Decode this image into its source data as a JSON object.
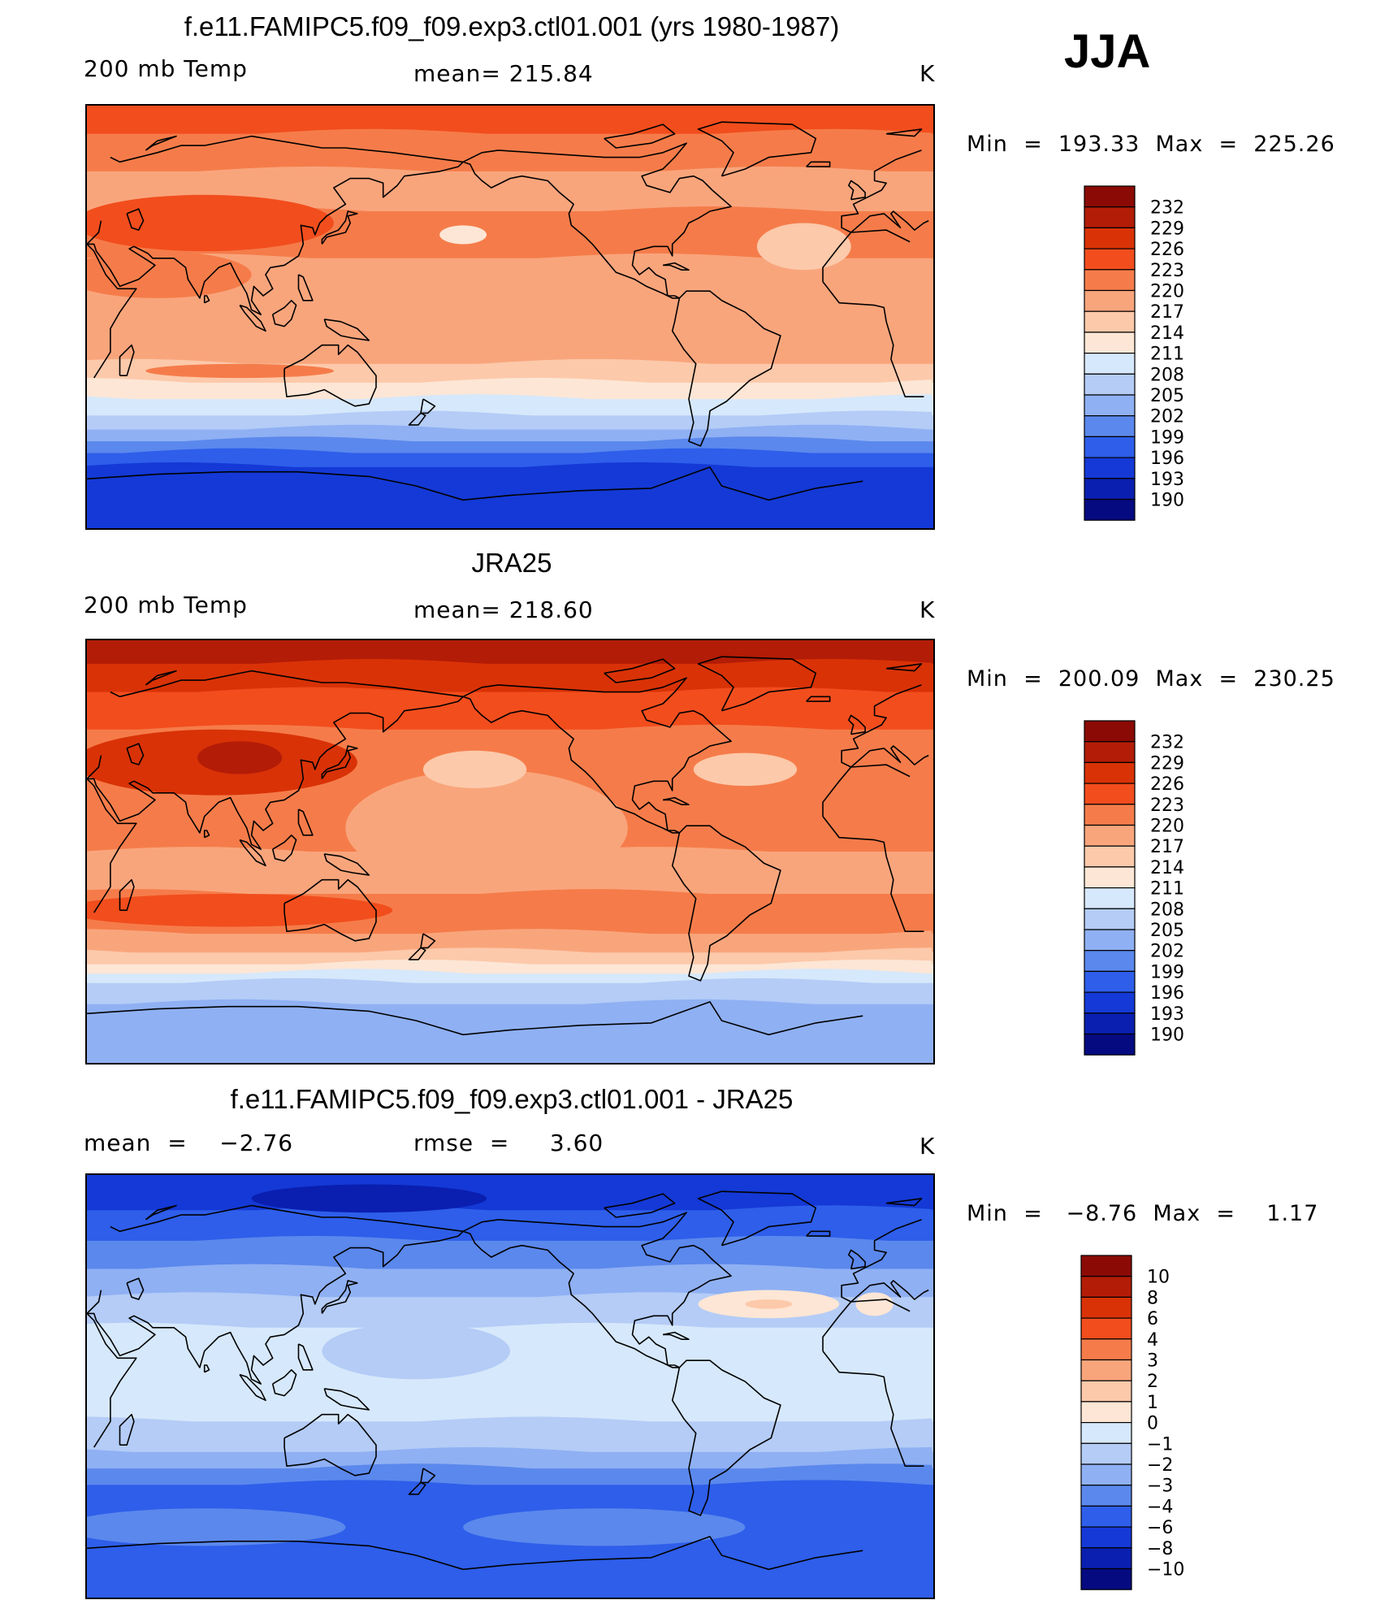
{
  "season": "JJA",
  "panels": [
    {
      "title": "f.e11.FAMIPC5.f09_f09.exp3.ctl01.001 (yrs 1980-1987)",
      "left_label": "200 mb Temp",
      "center_label": "mean= 215.84",
      "units": "K",
      "minmax": "Min  =  193.33  Max  =  225.26",
      "palette": "abs",
      "bands": [
        {
          "lat": [
            90,
            78
          ],
          "level": 223
        },
        {
          "lat": [
            78,
            62
          ],
          "level": 220
        },
        {
          "lat": [
            62,
            45
          ],
          "level": 217
        },
        {
          "lat": [
            45,
            25
          ],
          "level": 220
        },
        {
          "lat": [
            25,
            -20
          ],
          "level": 217
        },
        {
          "lat": [
            -20,
            -28
          ],
          "level": 214
        },
        {
          "lat": [
            -28,
            -35
          ],
          "level": 211
        },
        {
          "lat": [
            -35,
            -42
          ],
          "level": 208
        },
        {
          "lat": [
            -42,
            -48
          ],
          "level": 205
        },
        {
          "lat": [
            -48,
            -53
          ],
          "level": 202
        },
        {
          "lat": [
            -53,
            -58
          ],
          "level": 199
        },
        {
          "lat": [
            -58,
            -64
          ],
          "level": 196
        },
        {
          "lat": [
            -64,
            -90
          ],
          "level": 193
        }
      ],
      "blobs": [
        {
          "lon": 80,
          "lat": 40,
          "rlon": 55,
          "rlat": 12,
          "level": 223
        },
        {
          "lon": 60,
          "lat": 18,
          "rlon": 40,
          "rlat": 10,
          "level": 220
        },
        {
          "lon": 190,
          "lat": 35,
          "rlon": 10,
          "rlat": 4,
          "level": 211
        },
        {
          "lon": 95,
          "lat": -23,
          "rlon": 40,
          "rlat": 3,
          "level": 220
        },
        {
          "lon": 335,
          "lat": 30,
          "rlon": 20,
          "rlat": 10,
          "level": 214
        }
      ]
    },
    {
      "title": "JRA25",
      "left_label": "200 mb Temp",
      "center_label": "mean= 218.60",
      "units": "K",
      "minmax": "Min  =  200.09  Max  =  230.25",
      "palette": "abs",
      "bands": [
        {
          "lat": [
            90,
            80
          ],
          "level": 229
        },
        {
          "lat": [
            80,
            68
          ],
          "level": 226
        },
        {
          "lat": [
            68,
            52
          ],
          "level": 223
        },
        {
          "lat": [
            52,
            0
          ],
          "level": 220
        },
        {
          "lat": [
            0,
            -18
          ],
          "level": 217
        },
        {
          "lat": [
            -18,
            -35
          ],
          "level": 220
        },
        {
          "lat": [
            -35,
            -43
          ],
          "level": 217
        },
        {
          "lat": [
            -43,
            -48
          ],
          "level": 214
        },
        {
          "lat": [
            -48,
            -52
          ],
          "level": 211
        },
        {
          "lat": [
            -52,
            -56
          ],
          "level": 208
        },
        {
          "lat": [
            -56,
            -65
          ],
          "level": 205
        },
        {
          "lat": [
            -65,
            -90
          ],
          "level": 202
        }
      ],
      "blobs": [
        {
          "lon": 85,
          "lat": 38,
          "rlon": 60,
          "rlat": 14,
          "level": 226
        },
        {
          "lon": 95,
          "lat": 40,
          "rlon": 18,
          "rlat": 7,
          "level": 229
        },
        {
          "lon": 200,
          "lat": 10,
          "rlon": 60,
          "rlat": 25,
          "level": 217
        },
        {
          "lon": 195,
          "lat": 35,
          "rlon": 22,
          "rlat": 8,
          "level": 214
        },
        {
          "lon": 310,
          "lat": 35,
          "rlon": 22,
          "rlat": 7,
          "level": 214
        },
        {
          "lon": 90,
          "lat": -25,
          "rlon": 70,
          "rlat": 7,
          "level": 223
        }
      ]
    },
    {
      "title": "f.e11.FAMIPC5.f09_f09.exp3.ctl01.001 - JRA25",
      "left_label": "mean  =    −2.76",
      "center_label": "rmse  =     3.60",
      "units": "K",
      "minmax": "Min  =   −8.76  Max  =    1.17",
      "palette": "diff",
      "bands": [
        {
          "lat": [
            90,
            75
          ],
          "level": -8
        },
        {
          "lat": [
            75,
            62
          ],
          "level": -6
        },
        {
          "lat": [
            62,
            50
          ],
          "level": -4
        },
        {
          "lat": [
            50,
            38
          ],
          "level": -3
        },
        {
          "lat": [
            38,
            25
          ],
          "level": -2
        },
        {
          "lat": [
            25,
            -15
          ],
          "level": -1
        },
        {
          "lat": [
            -15,
            -28
          ],
          "level": -2
        },
        {
          "lat": [
            -28,
            -35
          ],
          "level": -3
        },
        {
          "lat": [
            -35,
            -42
          ],
          "level": -4
        },
        {
          "lat": [
            -42,
            -90
          ],
          "level": -6
        }
      ],
      "blobs": [
        {
          "lon": 170,
          "lat": 15,
          "rlon": 40,
          "rlat": 12,
          "level": -2
        },
        {
          "lon": 320,
          "lat": 35,
          "rlon": 30,
          "rlat": 6,
          "level": 0
        },
        {
          "lon": 320,
          "lat": 35,
          "rlon": 10,
          "rlat": 2,
          "level": 1
        },
        {
          "lon": 5,
          "lat": 35,
          "rlon": 8,
          "rlat": 5,
          "level": 0
        },
        {
          "lon": 80,
          "lat": -60,
          "rlon": 60,
          "rlat": 8,
          "level": -4
        },
        {
          "lon": 250,
          "lat": -60,
          "rlon": 60,
          "rlat": 8,
          "level": -4
        },
        {
          "lon": 150,
          "lat": 80,
          "rlon": 50,
          "rlat": 6,
          "level": -10
        }
      ]
    }
  ],
  "colorbars": [
    {
      "labels": [
        "232",
        "229",
        "226",
        "223",
        "220",
        "217",
        "214",
        "211",
        "208",
        "205",
        "202",
        "199",
        "196",
        "193",
        "190"
      ],
      "colors": [
        "#8b0a05",
        "#b31c06",
        "#d93207",
        "#f24d1d",
        "#f57c4a",
        "#f9a57c",
        "#fcc9aa",
        "#fde6d5",
        "#d6e8fb",
        "#b4ccf6",
        "#8fb0f3",
        "#5b88ec",
        "#2e5eea",
        "#1439d6",
        "#0a1fb0",
        "#050a80"
      ]
    },
    {
      "labels": [
        "232",
        "229",
        "226",
        "223",
        "220",
        "217",
        "214",
        "211",
        "208",
        "205",
        "202",
        "199",
        "196",
        "193",
        "190"
      ],
      "colors": [
        "#8b0a05",
        "#b31c06",
        "#d93207",
        "#f24d1d",
        "#f57c4a",
        "#f9a57c",
        "#fcc9aa",
        "#fde6d5",
        "#d6e8fb",
        "#b4ccf6",
        "#8fb0f3",
        "#5b88ec",
        "#2e5eea",
        "#1439d6",
        "#0a1fb0",
        "#050a80"
      ]
    },
    {
      "labels": [
        "10",
        "8",
        "6",
        "4",
        "3",
        "2",
        "1",
        "0",
        "−1",
        "−2",
        "−3",
        "−4",
        "−6",
        "−8",
        "−10"
      ],
      "colors": [
        "#8b0a05",
        "#b31c06",
        "#d93207",
        "#f24d1d",
        "#f57c4a",
        "#f9a57c",
        "#fcc9aa",
        "#fde6d5",
        "#d6e8fb",
        "#b4ccf6",
        "#8fb0f3",
        "#5b88ec",
        "#2e5eea",
        "#1439d6",
        "#0a1fb0",
        "#050a80"
      ]
    }
  ]
}
